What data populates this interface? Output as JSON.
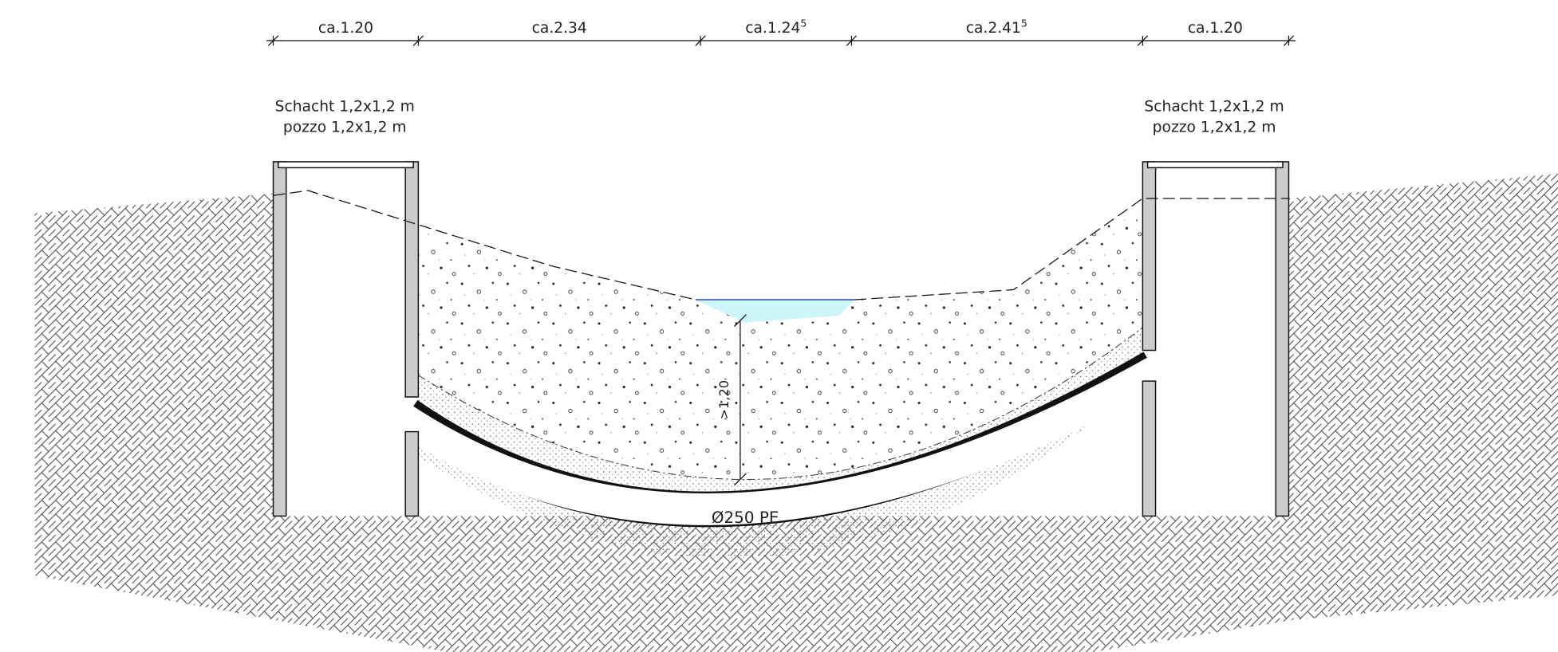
{
  "dimensions": [
    {
      "text": "ca.1.20"
    },
    {
      "text": "ca.2.34"
    },
    {
      "text": "ca.1.24",
      "sup": "5"
    },
    {
      "text": "ca.2.41",
      "sup": "5"
    },
    {
      "text": "ca.1.20"
    }
  ],
  "shafts": [
    {
      "label_de": "Schacht 1,2x1,2 m",
      "label_it": "pozzo 1,2x1,2 m"
    },
    {
      "label_de": "Schacht 1,2x1,2 m",
      "label_it": "pozzo 1,2x1,2 m"
    }
  ],
  "depth_label": ">1,20",
  "pipe_label": "Ø250 PE"
}
